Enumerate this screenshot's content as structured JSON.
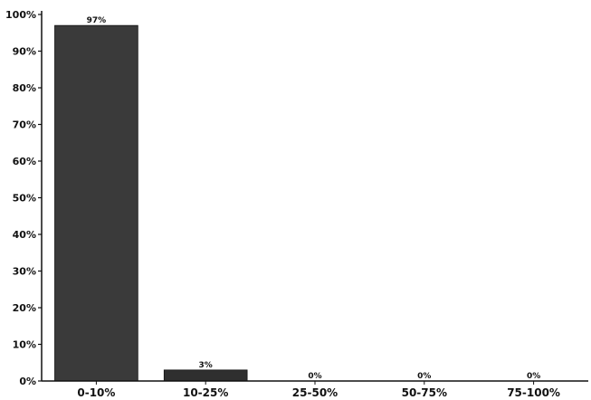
{
  "chart_data": {
    "type": "bar",
    "categories": [
      "0-10%",
      "10-25%",
      "25-50%",
      "50-75%",
      "75-100%"
    ],
    "values": [
      97,
      3,
      0,
      0,
      0
    ],
    "data_labels": [
      "97%",
      "3%",
      "0%",
      "0%",
      "0%"
    ],
    "y_ticks": [
      "0%",
      "10%",
      "20%",
      "30%",
      "40%",
      "50%",
      "60%",
      "70%",
      "80%",
      "90%",
      "100%"
    ],
    "ylim": [
      0,
      100
    ],
    "title": "",
    "xlabel": "",
    "ylabel": "",
    "grid": false,
    "bar_colors": [
      "#3a3a3a",
      "#2f2f2f",
      "#3a3a3a",
      "#3a3a3a",
      "#3a3a3a"
    ]
  }
}
